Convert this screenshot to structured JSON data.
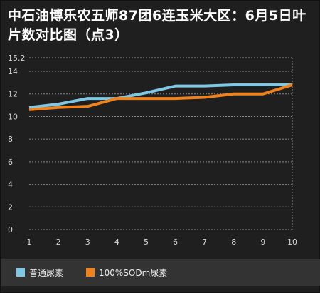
{
  "chart_data": {
    "type": "line",
    "title": "中石油博乐农五师87团6连玉米大区：6月5日叶片数对比图（点3）",
    "x": [
      1,
      2,
      3,
      4,
      5,
      6,
      7,
      8,
      9,
      10
    ],
    "x_tick_labels": [
      "1",
      "2",
      "3",
      "4",
      "5",
      "6",
      "7",
      "8",
      "9",
      "10"
    ],
    "y_tick_labels": [
      "0",
      "2",
      "4",
      "6",
      "8",
      "10",
      "12",
      "14",
      "15.2"
    ],
    "ylim": [
      0,
      15.2
    ],
    "grid": true,
    "legend_position": "bottom",
    "series": [
      {
        "name": "普通尿素",
        "color": "#7ec8e3",
        "values": [
          10.8,
          11.1,
          11.6,
          11.6,
          12.1,
          12.7,
          12.7,
          12.8,
          12.8,
          12.8
        ]
      },
      {
        "name": "100%SODm尿素",
        "color": "#f0821e",
        "values": [
          10.6,
          10.8,
          10.9,
          11.6,
          11.6,
          11.6,
          11.7,
          12.0,
          12.0,
          12.8
        ]
      }
    ]
  }
}
